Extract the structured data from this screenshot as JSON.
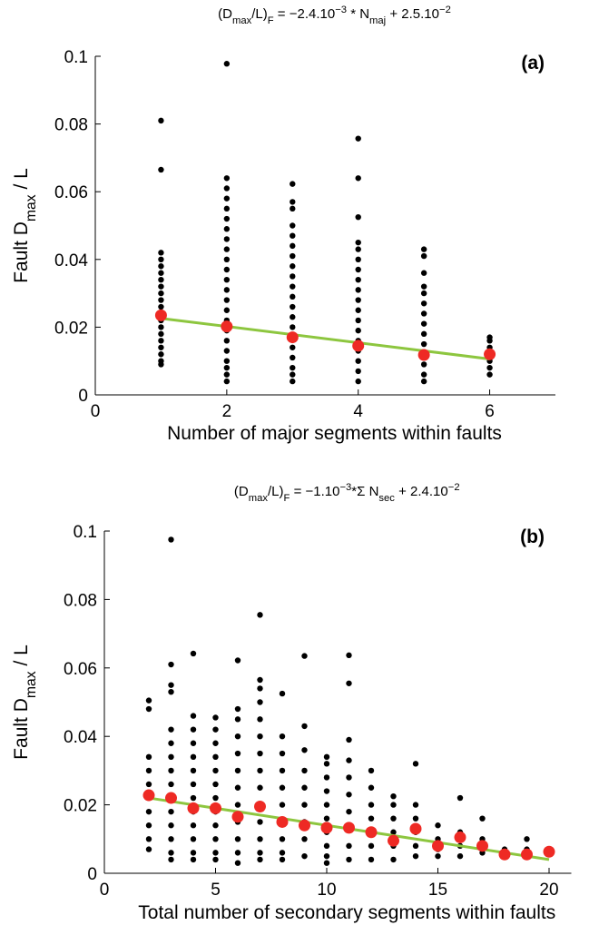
{
  "chart_data": [
    {
      "type": "scatter",
      "title": [
        {
          "text": "(D"
        },
        {
          "text": "max",
          "script": "sub"
        },
        {
          "text": "/L)"
        },
        {
          "text": "F",
          "script": "sub"
        },
        {
          "text": " = −2.4.10"
        },
        {
          "text": "−3",
          "script": "super"
        },
        {
          "text": " * N"
        },
        {
          "text": "maj",
          "script": "sub"
        },
        {
          "text": " + 2.5.10"
        },
        {
          "text": "−2",
          "script": "super"
        }
      ],
      "annotation": "(a)",
      "x_label": "Number of major segments within faults",
      "y_label": [
        {
          "text": "Fault D"
        },
        {
          "text": "max",
          "script": "sub"
        },
        {
          "text": " / L"
        }
      ],
      "xlim": [
        0,
        7
      ],
      "xticks": [
        0,
        2,
        4,
        6
      ],
      "ylim": [
        0,
        0.1
      ],
      "yticks": [
        0,
        0.02,
        0.04,
        0.06,
        0.08,
        0.1
      ],
      "series": [
        {
          "type": "scatter",
          "color": "#000000",
          "x": [
            1,
            1,
            1,
            1,
            1,
            1,
            1,
            1,
            1,
            1,
            1,
            1,
            1,
            1,
            1,
            1,
            1,
            1,
            1,
            1,
            2,
            2,
            2,
            2,
            2,
            2,
            2,
            2,
            2,
            2,
            2,
            2,
            2,
            2,
            2,
            2,
            2,
            2,
            2,
            2,
            2,
            2,
            2,
            3,
            3,
            3,
            3,
            3,
            3,
            3,
            3,
            3,
            3,
            3,
            3,
            3,
            3,
            3,
            3,
            3,
            3,
            3,
            3,
            4,
            4,
            4,
            4,
            4,
            4,
            4,
            4,
            4,
            4,
            4,
            4,
            4,
            4,
            4,
            4,
            4,
            4,
            5,
            5,
            5,
            5,
            5,
            5,
            5,
            5,
            5,
            5,
            5,
            5,
            5,
            5,
            6,
            6,
            6,
            6,
            6,
            6,
            6
          ],
          "values": [
            0.081,
            0.0665,
            0.042,
            0.04,
            0.038,
            0.036,
            0.034,
            0.032,
            0.03,
            0.028,
            0.026,
            0.024,
            0.022,
            0.02,
            0.018,
            0.016,
            0.014,
            0.012,
            0.01,
            0.009,
            0.0978,
            0.064,
            0.061,
            0.058,
            0.055,
            0.052,
            0.049,
            0.046,
            0.043,
            0.04,
            0.037,
            0.034,
            0.031,
            0.028,
            0.025,
            0.022,
            0.019,
            0.016,
            0.013,
            0.01,
            0.008,
            0.006,
            0.004,
            0.0623,
            0.057,
            0.055,
            0.05,
            0.047,
            0.044,
            0.041,
            0.038,
            0.035,
            0.032,
            0.029,
            0.026,
            0.023,
            0.02,
            0.017,
            0.014,
            0.011,
            0.008,
            0.006,
            0.004,
            0.0757,
            0.064,
            0.0525,
            0.045,
            0.043,
            0.04,
            0.037,
            0.034,
            0.031,
            0.028,
            0.025,
            0.022,
            0.019,
            0.016,
            0.013,
            0.01,
            0.007,
            0.004,
            0.043,
            0.041,
            0.036,
            0.032,
            0.03,
            0.027,
            0.024,
            0.021,
            0.018,
            0.015,
            0.012,
            0.009,
            0.006,
            0.004,
            0.017,
            0.016,
            0.014,
            0.012,
            0.01,
            0.008,
            0.006
          ]
        },
        {
          "type": "line",
          "color": "#8dc63f",
          "x": [
            1,
            6
          ],
          "values": [
            0.0226,
            0.0106
          ]
        },
        {
          "type": "scatter",
          "color": "#ee2a24",
          "x": [
            1,
            2,
            3,
            4,
            5,
            6
          ],
          "values": [
            0.0235,
            0.0202,
            0.017,
            0.0145,
            0.0118,
            0.012
          ]
        }
      ]
    },
    {
      "type": "scatter",
      "title": [
        {
          "text": "(D"
        },
        {
          "text": "max",
          "script": "sub"
        },
        {
          "text": "/L)"
        },
        {
          "text": "F",
          "script": "sub"
        },
        {
          "text": " = −1.10"
        },
        {
          "text": "−3",
          "script": "super"
        },
        {
          "text": "*Σ N"
        },
        {
          "text": "sec",
          "script": "sub"
        },
        {
          "text": " + 2.4.10"
        },
        {
          "text": "−2",
          "script": "super"
        }
      ],
      "annotation": "(b)",
      "x_label": "Total number of secondary segments within faults",
      "y_label": [
        {
          "text": "Fault D"
        },
        {
          "text": "max",
          "script": "sub"
        },
        {
          "text": " / L"
        }
      ],
      "xlim": [
        0,
        21
      ],
      "xticks": [
        0,
        5,
        10,
        15,
        20
      ],
      "ylim": [
        0,
        0.1
      ],
      "yticks": [
        0,
        0.02,
        0.04,
        0.06,
        0.08,
        0.1
      ],
      "series": [
        {
          "type": "scatter",
          "color": "#000000",
          "x": [
            2,
            2,
            2,
            2,
            2,
            2,
            2,
            2,
            2,
            2,
            3,
            3,
            3,
            3,
            3,
            3,
            3,
            3,
            3,
            3,
            3,
            3,
            3,
            3,
            3,
            4,
            4,
            4,
            4,
            4,
            4,
            4,
            4,
            4,
            4,
            4,
            4,
            4,
            5,
            5,
            5,
            5,
            5,
            5,
            5,
            5,
            5,
            5,
            5,
            5,
            6,
            6,
            6,
            6,
            6,
            6,
            6,
            6,
            6,
            6,
            6,
            6,
            7,
            7,
            7,
            7,
            7,
            7,
            7,
            7,
            7,
            7,
            7,
            7,
            7,
            7,
            8,
            8,
            8,
            8,
            8,
            8,
            8,
            8,
            8,
            8,
            9,
            9,
            9,
            9,
            9,
            9,
            9,
            9,
            9,
            10,
            10,
            10,
            10,
            10,
            10,
            10,
            10,
            10,
            10,
            11,
            11,
            11,
            11,
            11,
            11,
            11,
            11,
            11,
            11,
            12,
            12,
            12,
            12,
            12,
            12,
            12,
            13,
            13,
            13,
            13,
            13,
            13,
            14,
            14,
            14,
            14,
            14,
            14,
            15,
            15,
            15,
            15,
            16,
            16,
            16,
            16,
            17,
            17,
            17,
            18,
            18,
            19,
            19,
            19,
            20,
            20
          ],
          "values": [
            0.0505,
            0.048,
            0.034,
            0.03,
            0.026,
            0.022,
            0.018,
            0.014,
            0.01,
            0.007,
            0.0975,
            0.061,
            0.055,
            0.053,
            0.042,
            0.038,
            0.034,
            0.03,
            0.026,
            0.022,
            0.018,
            0.014,
            0.01,
            0.006,
            0.004,
            0.0642,
            0.046,
            0.042,
            0.038,
            0.034,
            0.03,
            0.026,
            0.022,
            0.018,
            0.014,
            0.01,
            0.006,
            0.004,
            0.0455,
            0.042,
            0.038,
            0.034,
            0.03,
            0.026,
            0.022,
            0.018,
            0.014,
            0.01,
            0.006,
            0.004,
            0.0622,
            0.048,
            0.045,
            0.04,
            0.035,
            0.03,
            0.025,
            0.02,
            0.015,
            0.01,
            0.006,
            0.003,
            0.0755,
            0.0565,
            0.054,
            0.05,
            0.045,
            0.04,
            0.035,
            0.03,
            0.025,
            0.02,
            0.015,
            0.01,
            0.006,
            0.004,
            0.0525,
            0.04,
            0.035,
            0.03,
            0.025,
            0.02,
            0.015,
            0.01,
            0.006,
            0.004,
            0.0635,
            0.043,
            0.036,
            0.03,
            0.025,
            0.02,
            0.015,
            0.01,
            0.005,
            0.034,
            0.032,
            0.028,
            0.024,
            0.02,
            0.016,
            0.012,
            0.008,
            0.005,
            0.003,
            0.0637,
            0.0555,
            0.039,
            0.033,
            0.028,
            0.023,
            0.018,
            0.013,
            0.008,
            0.004,
            0.03,
            0.025,
            0.02,
            0.016,
            0.012,
            0.008,
            0.004,
            0.0225,
            0.02,
            0.016,
            0.012,
            0.008,
            0.004,
            0.032,
            0.02,
            0.016,
            0.012,
            0.008,
            0.005,
            0.014,
            0.01,
            0.007,
            0.005,
            0.022,
            0.012,
            0.008,
            0.005,
            0.016,
            0.01,
            0.006,
            0.007,
            0.005,
            0.01,
            0.007,
            0.005,
            0.0065,
            0.006
          ]
        },
        {
          "type": "line",
          "color": "#8dc63f",
          "x": [
            2,
            20
          ],
          "values": [
            0.022,
            0.004
          ]
        },
        {
          "type": "scatter",
          "color": "#ee2a24",
          "x": [
            2,
            3,
            4,
            5,
            6,
            7,
            8,
            9,
            10,
            11,
            12,
            13,
            14,
            15,
            16,
            17,
            18,
            19,
            20
          ],
          "values": [
            0.0228,
            0.022,
            0.019,
            0.019,
            0.0165,
            0.0195,
            0.015,
            0.014,
            0.0133,
            0.0133,
            0.012,
            0.0095,
            0.013,
            0.008,
            0.0105,
            0.008,
            0.0055,
            0.0055,
            0.0063
          ]
        }
      ]
    }
  ]
}
